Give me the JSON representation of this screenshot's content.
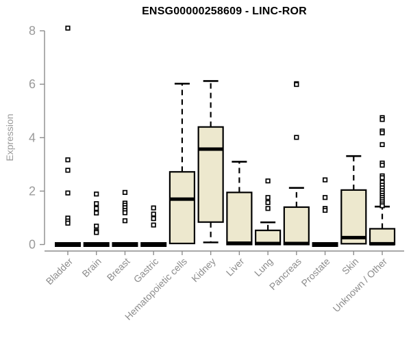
{
  "chart_data": {
    "type": "boxplot",
    "title": "ENSG00000258609 - LINC-ROR",
    "ylabel": "Expression",
    "xlabel": "",
    "ylim": [
      0,
      8
    ],
    "yticks": [
      0,
      2,
      4,
      6,
      8
    ],
    "grid": false,
    "legend": null,
    "categories": [
      "Bladder",
      "Brain",
      "Breast",
      "Gastric",
      "Hematopoietic cells",
      "Kidney",
      "Liver",
      "Lung",
      "Pancreas",
      "Prostate",
      "Skin",
      "Unknown / Other"
    ],
    "series": [
      {
        "name": "Bladder",
        "q1": 0,
        "median": 0,
        "q3": 0,
        "whisker_low": 0,
        "whisker_high": 0,
        "outliers": [
          8.1,
          3.17,
          2.78,
          1.93,
          0.99,
          0.88,
          0.8
        ]
      },
      {
        "name": "Brain",
        "q1": 0,
        "median": 0,
        "q3": 0,
        "whisker_low": 0,
        "whisker_high": 0,
        "outliers": [
          1.89,
          1.53,
          1.35,
          1.18,
          0.69,
          0.5,
          0.45
        ]
      },
      {
        "name": "Breast",
        "q1": 0,
        "median": 0,
        "q3": 0,
        "whisker_low": 0,
        "whisker_high": 0,
        "outliers": [
          1.95,
          1.55,
          1.47,
          1.38,
          1.28,
          1.19,
          0.89
        ]
      },
      {
        "name": "Gastric",
        "q1": 0,
        "median": 0,
        "q3": 0,
        "whisker_low": 0,
        "whisker_high": 0,
        "outliers": [
          1.37,
          1.14,
          0.97,
          0.73
        ]
      },
      {
        "name": "Hematopoietic cells",
        "q1": 0.04,
        "median": 1.7,
        "q3": 2.72,
        "whisker_low": 0.01,
        "whisker_high": 6.02,
        "outliers": []
      },
      {
        "name": "Kidney",
        "q1": 0.84,
        "median": 3.57,
        "q3": 4.4,
        "whisker_low": 0.08,
        "whisker_high": 6.12,
        "outliers": []
      },
      {
        "name": "Liver",
        "q1": 0,
        "median": 0.05,
        "q3": 1.95,
        "whisker_low": 0,
        "whisker_high": 3.1,
        "outliers": []
      },
      {
        "name": "Lung",
        "q1": 0,
        "median": 0.04,
        "q3": 0.53,
        "whisker_low": 0,
        "whisker_high": 0.83,
        "outliers": [
          2.38,
          1.76,
          1.57,
          1.35
        ]
      },
      {
        "name": "Pancreas",
        "q1": 0,
        "median": 0.04,
        "q3": 1.4,
        "whisker_low": 0,
        "whisker_high": 2.12,
        "outliers": [
          6.02,
          5.99,
          4.01
        ]
      },
      {
        "name": "Prostate",
        "q1": 0,
        "median": 0,
        "q3": 0,
        "whisker_low": 0,
        "whisker_high": 0,
        "outliers": [
          2.42,
          1.76,
          1.35,
          1.28
        ]
      },
      {
        "name": "Skin",
        "q1": 0.03,
        "median": 0.26,
        "q3": 2.04,
        "whisker_low": 0.01,
        "whisker_high": 3.31,
        "outliers": []
      },
      {
        "name": "Unknown / Other",
        "q1": 0,
        "median": 0.03,
        "q3": 0.59,
        "whisker_low": 0,
        "whisker_high": 1.42,
        "outliers": [
          4.75,
          4.68,
          4.25,
          4.18,
          3.74,
          3.05,
          2.97,
          2.57,
          2.5,
          2.33,
          2.22,
          2.12,
          2.02,
          1.93,
          1.84,
          1.76,
          1.68,
          1.6,
          1.52,
          1.45
        ]
      }
    ],
    "colors": {
      "box_fill": "#EDE8CE",
      "box_border": "#000000",
      "median": "#000000",
      "whisker": "#000000",
      "outlier_border": "#000000",
      "outlier_fill": "#ffffff",
      "axis": "#8c8c8c",
      "tick_label": "#9a9a9a",
      "title": "#000000",
      "background": "#ffffff"
    }
  }
}
